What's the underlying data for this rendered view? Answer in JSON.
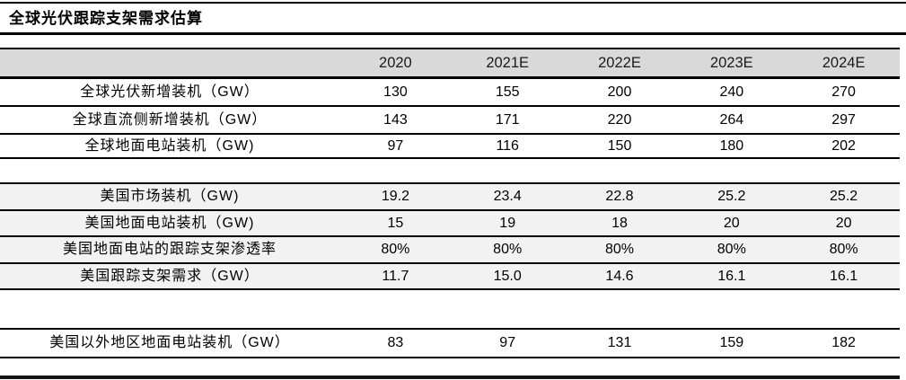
{
  "title": "全球光伏跟踪支架需求估算",
  "colors": {
    "header_bg": "#d9d9d9",
    "us_section_bg": "#f2f2f2",
    "rule_line": "#000000"
  },
  "table": {
    "header": {
      "label": "",
      "years": [
        "2020",
        "2021E",
        "2022E",
        "2023E",
        "2024E"
      ]
    },
    "sections": [
      {
        "rows": [
          {
            "label": "全球光伏新增装机（GW）",
            "values": [
              "130",
              "155",
              "200",
              "240",
              "270"
            ]
          },
          {
            "label": "全球直流侧新增装机（GW）",
            "values": [
              "143",
              "171",
              "220",
              "264",
              "297"
            ]
          },
          {
            "label": "全球地面电站装机（GW)",
            "values": [
              "97",
              "116",
              "150",
              "180",
              "202"
            ]
          }
        ]
      },
      {
        "rows": [
          {
            "label": "美国市场装机（GW)",
            "values": [
              "19.2",
              "23.4",
              "22.8",
              "25.2",
              "25.2"
            ]
          },
          {
            "label": "美国地面电站装机（GW)",
            "values": [
              "15",
              "19",
              "18",
              "20",
              "20"
            ]
          },
          {
            "label": "美国地面电站的跟踪支架渗透率",
            "values": [
              "80%",
              "80%",
              "80%",
              "80%",
              "80%"
            ]
          },
          {
            "label": "美国跟踪支架需求（GW）",
            "values": [
              "11.7",
              "15.0",
              "14.6",
              "16.1",
              "16.1"
            ]
          }
        ]
      },
      {
        "rows": [
          {
            "label": "美国以外地区地面电站装机（GW）",
            "values": [
              "83",
              "97",
              "131",
              "159",
              "182"
            ]
          }
        ]
      }
    ]
  }
}
